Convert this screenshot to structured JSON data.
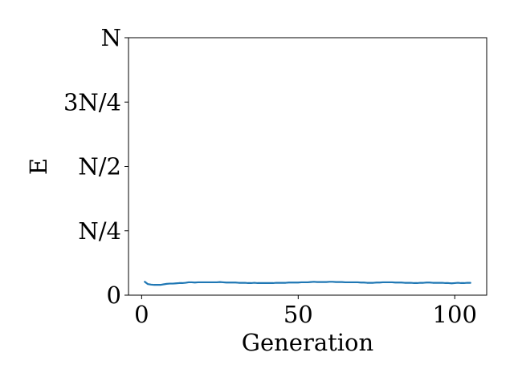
{
  "chart_data": {
    "type": "line",
    "title": "",
    "xlabel": "Generation",
    "ylabel": "E",
    "xlim": [
      -4.2,
      110.2
    ],
    "ylim": [
      0,
      1
    ],
    "grid": false,
    "x_ticks": [
      {
        "value": 0,
        "label": "0"
      },
      {
        "value": 50,
        "label": "50"
      },
      {
        "value": 100,
        "label": "100"
      }
    ],
    "y_ticks": [
      {
        "value": 0,
        "label": "0"
      },
      {
        "value": 0.25,
        "label": "N/4"
      },
      {
        "value": 0.5,
        "label": "N/2"
      },
      {
        "value": 0.75,
        "label": "3N/4"
      },
      {
        "value": 1,
        "label": "N"
      }
    ],
    "series": [
      {
        "color": "#1f77b4",
        "x": [
          1,
          2,
          3,
          4,
          5,
          6,
          7,
          8,
          9,
          10,
          11,
          12,
          13,
          14,
          15,
          16,
          17,
          18,
          19,
          20,
          21,
          22,
          23,
          24,
          25,
          26,
          27,
          28,
          29,
          30,
          31,
          32,
          33,
          34,
          35,
          36,
          37,
          38,
          39,
          40,
          41,
          42,
          43,
          44,
          45,
          46,
          47,
          48,
          49,
          50,
          51,
          52,
          53,
          54,
          55,
          56,
          57,
          58,
          59,
          60,
          61,
          62,
          63,
          64,
          65,
          66,
          67,
          68,
          69,
          70,
          71,
          72,
          73,
          74,
          75,
          76,
          77,
          78,
          79,
          80,
          81,
          82,
          83,
          84,
          85,
          86,
          87,
          88,
          89,
          90,
          91,
          92,
          93,
          94,
          95,
          96,
          97,
          98,
          99,
          100,
          101,
          102,
          103,
          104,
          105
        ],
        "y": [
          0.052,
          0.043,
          0.041,
          0.04,
          0.04,
          0.04,
          0.042,
          0.044,
          0.045,
          0.045,
          0.046,
          0.047,
          0.047,
          0.048,
          0.05,
          0.05,
          0.049,
          0.05,
          0.05,
          0.05,
          0.05,
          0.05,
          0.05,
          0.05,
          0.051,
          0.05,
          0.049,
          0.049,
          0.049,
          0.049,
          0.048,
          0.048,
          0.048,
          0.047,
          0.047,
          0.048,
          0.047,
          0.047,
          0.047,
          0.047,
          0.047,
          0.047,
          0.048,
          0.048,
          0.048,
          0.048,
          0.049,
          0.049,
          0.049,
          0.049,
          0.05,
          0.05,
          0.05,
          0.051,
          0.052,
          0.051,
          0.051,
          0.051,
          0.051,
          0.052,
          0.052,
          0.051,
          0.051,
          0.051,
          0.05,
          0.05,
          0.05,
          0.05,
          0.05,
          0.049,
          0.049,
          0.048,
          0.048,
          0.048,
          0.049,
          0.049,
          0.05,
          0.05,
          0.05,
          0.05,
          0.049,
          0.049,
          0.049,
          0.048,
          0.048,
          0.048,
          0.047,
          0.047,
          0.048,
          0.048,
          0.049,
          0.049,
          0.048,
          0.048,
          0.048,
          0.048,
          0.047,
          0.047,
          0.046,
          0.047,
          0.048,
          0.047,
          0.047,
          0.048,
          0.048
        ]
      }
    ]
  }
}
